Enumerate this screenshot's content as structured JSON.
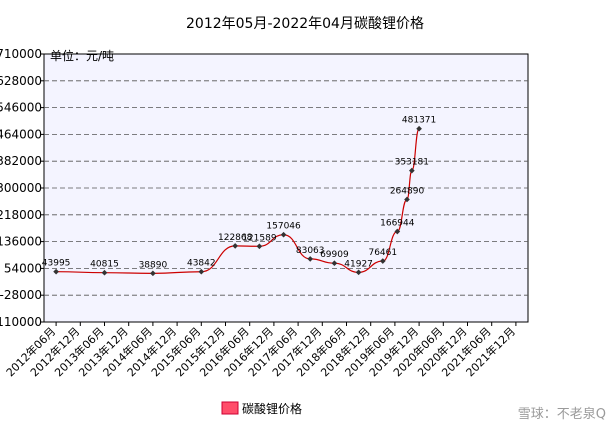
{
  "chart_data": {
    "type": "line",
    "title": "2012年05月-2022年04月碳酸锂价格",
    "unit_label": "单位：元/吨",
    "legend": {
      "series_name": "碳酸锂价格",
      "placement": "bottom-center"
    },
    "y_ticks": [
      "710000",
      "628000",
      "546000",
      "464000",
      "382000",
      "300000",
      "218000",
      "136000",
      "54000",
      "-28000",
      "-110000"
    ],
    "ylim": [
      -110000,
      710000
    ],
    "x_ticks": [
      "2012年06月",
      "2012年12月",
      "2013年06月",
      "2013年12月",
      "2014年06月",
      "2014年12月",
      "2015年06月",
      "2015年12月",
      "2016年06月",
      "2016年12月",
      "2017年06月",
      "2017年12月",
      "2018年06月",
      "2018年12月",
      "2019年06月",
      "2019年12月",
      "2020年06月",
      "2020年12月",
      "2021年06月",
      "2021年12月"
    ],
    "grid": true,
    "series": [
      {
        "name": "碳酸锂价格",
        "color": "#cc0000",
        "points": [
          {
            "x": 0,
            "y": 43995,
            "label": "43995"
          },
          {
            "x": 2,
            "y": 40815,
            "label": "40815"
          },
          {
            "x": 4,
            "y": 38890,
            "label": "38890"
          },
          {
            "x": 6,
            "y": 43842,
            "label": "43842"
          },
          {
            "x": 7.4,
            "y": 122868,
            "label": "122868"
          },
          {
            "x": 8.4,
            "y": 121589,
            "label": "121589"
          },
          {
            "x": 9.4,
            "y": 157046,
            "label": "157046"
          },
          {
            "x": 10.5,
            "y": 83063,
            "label": "83063"
          },
          {
            "x": 11.5,
            "y": 69909,
            "label": "69909"
          },
          {
            "x": 12.5,
            "y": 41927,
            "label": "41927"
          },
          {
            "x": 13.5,
            "y": 76461,
            "label": "76461"
          },
          {
            "x": 14.1,
            "y": 166944,
            "label": "166944"
          },
          {
            "x": 14.5,
            "y": 264890,
            "label": "264890"
          },
          {
            "x": 14.7,
            "y": 353181,
            "label": "353181"
          },
          {
            "x": 15.0,
            "y": 481371,
            "label": "481371"
          }
        ]
      }
    ]
  },
  "watermark": "雪球：不老泉Q"
}
